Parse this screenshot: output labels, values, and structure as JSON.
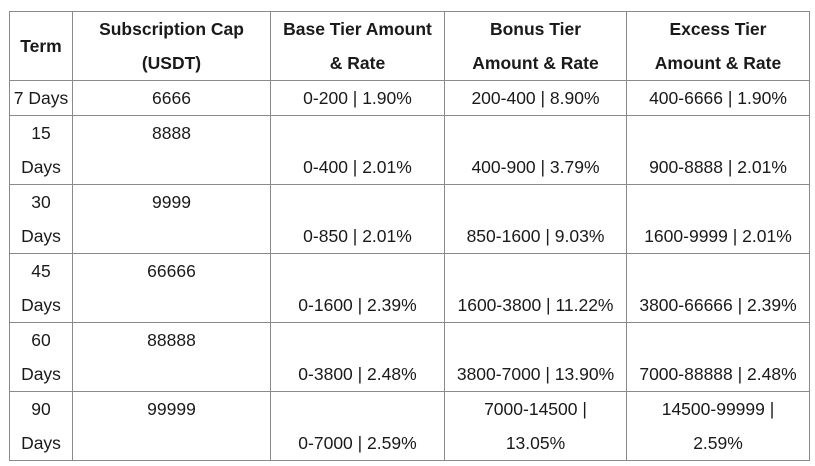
{
  "table": {
    "headers": {
      "term": "Term",
      "cap": [
        "Subscription Cap",
        "(USDT)"
      ],
      "base": [
        "Base Tier Amount",
        "& Rate"
      ],
      "bonus": [
        "Bonus Tier",
        "Amount & Rate"
      ],
      "excess": [
        "Excess Tier",
        "Amount & Rate"
      ]
    },
    "rows": [
      {
        "term": [
          "7 Days"
        ],
        "cap": "6666",
        "base": "0-200 | 1.90%",
        "bonus": [
          "200-400 | 8.90%"
        ],
        "excess": [
          "400-6666 | 1.90%"
        ]
      },
      {
        "term": [
          "15",
          "Days"
        ],
        "cap": "8888",
        "base": "0-400 | 2.01%",
        "bonus": [
          "400-900 | 3.79%"
        ],
        "excess": [
          "900-8888 | 2.01%"
        ]
      },
      {
        "term": [
          "30",
          "Days"
        ],
        "cap": "9999",
        "base": "0-850 | 2.01%",
        "bonus": [
          "850-1600 | 9.03%"
        ],
        "excess": [
          "1600-9999 | 2.01%"
        ]
      },
      {
        "term": [
          "45",
          "Days"
        ],
        "cap": "66666",
        "base": "0-1600 | 2.39%",
        "bonus": [
          "1600-3800 | 11.22%"
        ],
        "excess": [
          "3800-66666 | 2.39%"
        ]
      },
      {
        "term": [
          "60",
          "Days"
        ],
        "cap": "88888",
        "base": "0-3800 | 2.48%",
        "bonus": [
          "3800-7000 | 13.90%"
        ],
        "excess": [
          "7000-88888 | 2.48%"
        ]
      },
      {
        "term": [
          "90",
          "Days"
        ],
        "cap": "99999",
        "base": "0-7000 | 2.59%",
        "bonus": [
          "7000-14500 |",
          "13.05%"
        ],
        "excess": [
          "14500-99999 |",
          "2.59%"
        ]
      }
    ]
  }
}
